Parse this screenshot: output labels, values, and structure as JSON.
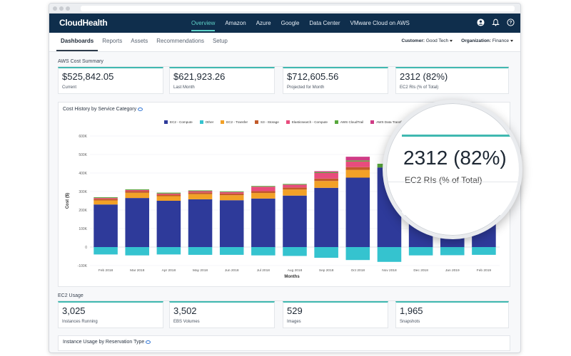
{
  "app": {
    "brand": "CloudHealth"
  },
  "topnav": {
    "tabs": [
      "Overview",
      "Amazon",
      "Azure",
      "Google",
      "Data Center",
      "VMware Cloud on AWS"
    ],
    "active": 0
  },
  "icons": {
    "user": "user-circle-icon",
    "bell": "bell-icon",
    "help": "help-circle-icon",
    "eye": "eye-icon"
  },
  "subnav": {
    "tabs": [
      "Dashboards",
      "Reports",
      "Assets",
      "Recommendations",
      "Setup"
    ],
    "customer_label": "Customer:",
    "customer_value": "Good Tech",
    "org_label": "Organization:",
    "org_value": "Finance"
  },
  "aws_summary": {
    "title": "AWS Cost Summary",
    "cards": [
      {
        "value": "$525,842.05",
        "label": "Current"
      },
      {
        "value": "$621,923.26",
        "label": "Last Month"
      },
      {
        "value": "$712,605.56",
        "label": "Projected for Month"
      },
      {
        "value": "2312 (82%)",
        "label": "EC2 RIs (% of Total)"
      }
    ]
  },
  "cost_history": {
    "title": "Cost History by Service Category"
  },
  "magnifier": {
    "value": "2312 (82%)",
    "label": "EC2 RIs (% of Total)"
  },
  "ec2_usage": {
    "title": "EC2 Usage",
    "cards": [
      {
        "value": "3,025",
        "label": "Instances Running"
      },
      {
        "value": "3,502",
        "label": "EBS Volumes"
      },
      {
        "value": "529",
        "label": "Images"
      },
      {
        "value": "1,965",
        "label": "Snapshots"
      }
    ]
  },
  "instance_usage": {
    "title": "Instance Usage by Reservation Type"
  },
  "colors": {
    "accent": "#3fb8b0",
    "nav_bg": "#0f2e4c",
    "nav_active": "#5fd2c8",
    "compute": "#2e3a9a",
    "other": "#35c3cf",
    "transfer": "#f2a127",
    "storage": "#c25a2a",
    "elastic": "#e84c7d",
    "cloudtrail": "#58a83c",
    "datatransfer": "#cf3c86"
  },
  "chart_data": {
    "type": "bar",
    "stacked": true,
    "xlabel": "Months",
    "ylabel": "Cost ($)",
    "ylim": [
      -100000,
      600000
    ],
    "yticks": [
      "-100K",
      "0",
      "100K",
      "200K",
      "300K",
      "400K",
      "500K",
      "600K"
    ],
    "ytick_values": [
      -100000,
      0,
      100000,
      200000,
      300000,
      400000,
      500000,
      600000
    ],
    "legend_position": "top",
    "categories": [
      "Feb 2018",
      "Mar 2018",
      "Apr 2018",
      "May 2018",
      "Jun 2018",
      "Jul 2018",
      "Aug 2018",
      "Sep 2018",
      "Oct 2018",
      "Nov 2018",
      "Dec 2018",
      "Jan 2019",
      "Feb 2019"
    ],
    "series": [
      {
        "name": "EC2 - Compute",
        "color": "#2e3a9a",
        "values": [
          230000,
          265000,
          250000,
          258000,
          253000,
          262000,
          278000,
          320000,
          375000,
          430000,
          300000,
          310000,
          290000
        ]
      },
      {
        "name": "Other",
        "color": "#35c3cf",
        "values": [
          -40000,
          -45000,
          -40000,
          -42000,
          -42000,
          -45000,
          -48000,
          -58000,
          -70000,
          -80000,
          -45000,
          -44000,
          -42000
        ]
      },
      {
        "name": "EC2 - Transfer",
        "color": "#f2a127",
        "values": [
          22000,
          28000,
          25000,
          28000,
          27000,
          30000,
          33000,
          37000,
          42000,
          0,
          0,
          0,
          0
        ]
      },
      {
        "name": "S3 - Storage",
        "color": "#c25a2a",
        "values": [
          8000,
          9000,
          8000,
          9000,
          9000,
          10000,
          11000,
          13000,
          15000,
          0,
          0,
          0,
          0
        ]
      },
      {
        "name": "Elasticsearch - Compute",
        "color": "#e84c7d",
        "values": [
          5000,
          6000,
          6000,
          7000,
          8000,
          24000,
          15000,
          30000,
          30000,
          0,
          0,
          0,
          0
        ]
      },
      {
        "name": "AWS CloudTrail",
        "color": "#58a83c",
        "values": [
          4000,
          4000,
          5000,
          4000,
          4000,
          4000,
          4000,
          5000,
          6000,
          0,
          0,
          0,
          0
        ]
      },
      {
        "name": "AWS Data Transfer",
        "color": "#cf3c86",
        "values": [
          0,
          0,
          0,
          0,
          0,
          0,
          0,
          5000,
          20000,
          0,
          0,
          0,
          0
        ]
      }
    ],
    "top_overlays": [
      {
        "category": "Nov 2018",
        "color": "#58a83c",
        "value": 20000
      }
    ]
  }
}
